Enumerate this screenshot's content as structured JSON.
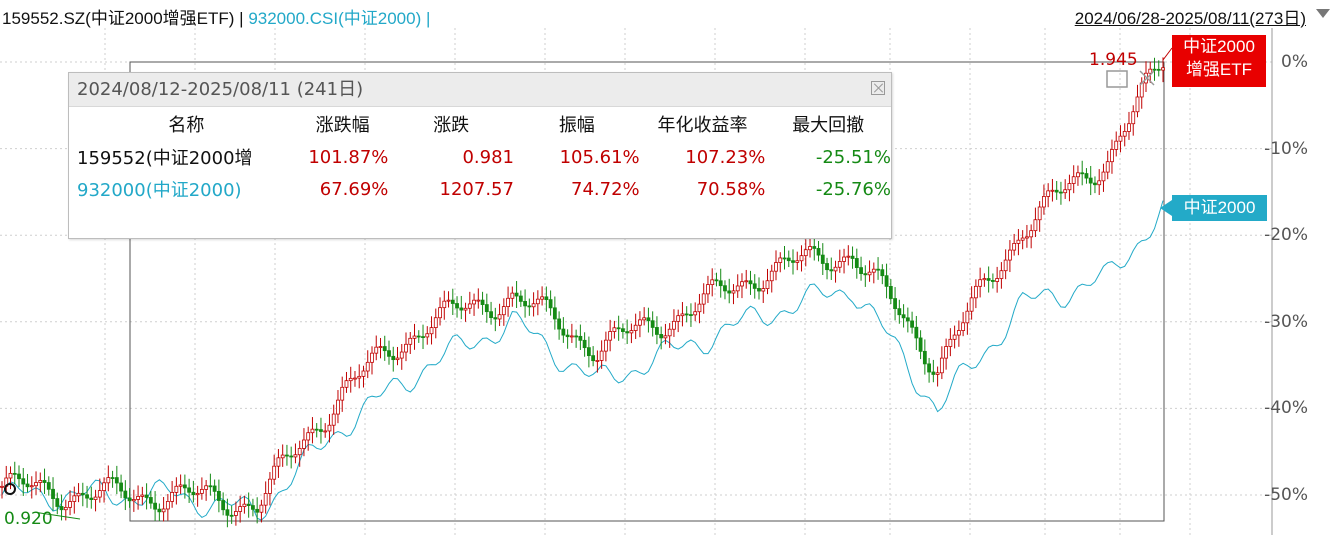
{
  "header": {
    "etf_label": "159552.SZ(中证2000增强ETF)",
    "separator": "|",
    "index_label": "932000.CSI(中证2000)",
    "separator2": "|",
    "range_label": "2024/06/28-2025/08/11(273日)"
  },
  "popup": {
    "title": "2024/08/12-2025/08/11 (241日)",
    "columns": [
      "名称",
      "涨跌幅",
      "涨跌",
      "振幅",
      "年化收益率",
      "最大回撤"
    ],
    "rows": [
      {
        "name": "159552(中证2000增",
        "change_pct": "101.87%",
        "change": "0.981",
        "amplitude": "105.61%",
        "annualized": "107.23%",
        "max_drawdown": "-25.51%"
      },
      {
        "name": "932000(中证2000)",
        "change_pct": "67.69%",
        "change": "1207.57",
        "amplitude": "74.72%",
        "annualized": "70.58%",
        "max_drawdown": "-25.76%"
      }
    ]
  },
  "labels": {
    "high_value": "1.945",
    "low_value": "0.920",
    "etf_flag_line1": "中证2000",
    "etf_flag_line2": "增强ETF",
    "index_flag": "中证2000"
  },
  "colors": {
    "up": "#c00000",
    "down": "#158a15",
    "index_line": "#23aac8",
    "etf_flag": "#e80000",
    "grid": "#cfcfcf"
  },
  "chart_data": {
    "type": "line",
    "x": [
      0,
      20,
      40,
      60,
      80,
      100,
      120,
      140,
      160,
      180,
      200,
      220,
      240,
      260,
      273
    ],
    "ylim": [
      -55,
      3
    ],
    "yticks": [
      "0%",
      "-10%",
      "-20%",
      "-30%",
      "-40%",
      "-50%"
    ],
    "series": [
      {
        "name": "中证2000增强ETF",
        "values": [
          -49,
          -50,
          -50,
          -51,
          -38,
          -30,
          -27,
          -33,
          -29,
          -24,
          -22,
          -35,
          -19,
          -11,
          0
        ]
      },
      {
        "name": "中证2000",
        "values": [
          -50,
          -50,
          -50,
          -52,
          -42,
          -35,
          -30,
          -37,
          -33,
          -29,
          -26,
          -40,
          -28,
          -25,
          -17
        ]
      }
    ]
  }
}
